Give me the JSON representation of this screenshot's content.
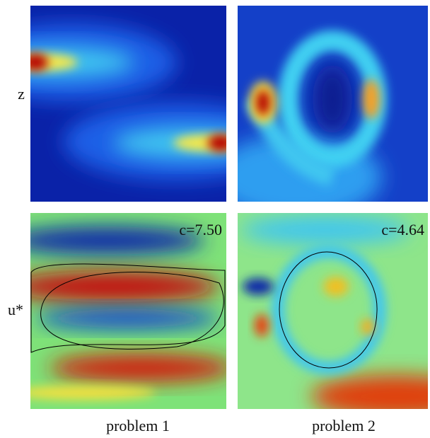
{
  "row_labels": [
    "z",
    "u*"
  ],
  "column_labels": [
    "problem 1",
    "problem 2"
  ],
  "panels": [
    {
      "annotation": null
    },
    {
      "annotation": null
    },
    {
      "annotation": "c=7.50"
    },
    {
      "annotation": "c=4.64"
    }
  ]
}
